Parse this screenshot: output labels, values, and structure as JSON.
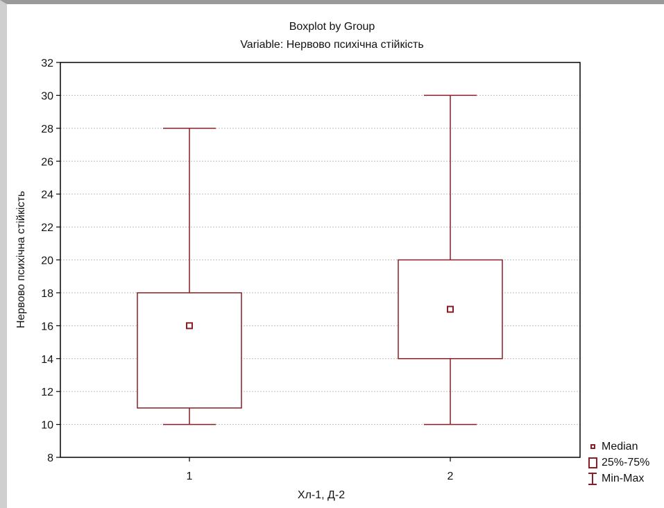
{
  "chart_data": {
    "type": "boxplot",
    "title": "Boxplot by Group",
    "subtitle": "Variable: Нервово психічна стійкість",
    "xlabel": "Хл-1,  Д-2",
    "ylabel": "Нервово психічна стійкість",
    "ylim": [
      8,
      32
    ],
    "yticks": [
      8,
      10,
      12,
      14,
      16,
      18,
      20,
      22,
      24,
      26,
      28,
      30,
      32
    ],
    "grid": true,
    "legend_position": "bottom-right",
    "legend": [
      "Median",
      "25%-75%",
      "Min-Max"
    ],
    "color": "#8b1c23",
    "categories": [
      "1",
      "2"
    ],
    "boxes": [
      {
        "category": "1",
        "min": 10,
        "q1": 11,
        "median": 16,
        "q3": 18,
        "max": 28
      },
      {
        "category": "2",
        "min": 10,
        "q1": 14,
        "median": 17,
        "q3": 20,
        "max": 30
      }
    ]
  }
}
